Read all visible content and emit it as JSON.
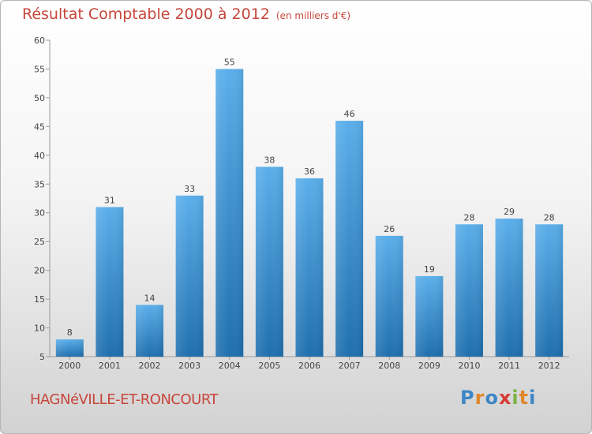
{
  "chart_data": {
    "type": "bar",
    "title": "Résultat Comptable 2000 à 2012",
    "subtitle": "(en milliers d'€)",
    "categories": [
      "2000",
      "2001",
      "2002",
      "2003",
      "2004",
      "2005",
      "2006",
      "2007",
      "2008",
      "2009",
      "2010",
      "2011",
      "2012"
    ],
    "values": [
      8,
      31,
      14,
      33,
      55,
      38,
      36,
      46,
      26,
      19,
      28,
      29,
      28
    ],
    "ylim": [
      5,
      60
    ],
    "yticks": [
      5,
      10,
      15,
      20,
      25,
      30,
      35,
      40,
      45,
      50,
      55,
      60
    ],
    "grid": false,
    "xlabel": "",
    "ylabel": ""
  },
  "commune": "HAGNéVILLE-ET-RONCOURT",
  "logo": {
    "letters": [
      "P",
      "r",
      "o",
      "x",
      "i",
      "t",
      "i"
    ],
    "colors": [
      "#3d86c6",
      "#e0872b",
      "#3d86c6",
      "#d63b34",
      "#7cb342",
      "#e0872b",
      "#3d86c6"
    ]
  },
  "colors": {
    "bar_top": "#5aaeea",
    "bar_bottom": "#1f6fae",
    "title": "#c6463b"
  }
}
